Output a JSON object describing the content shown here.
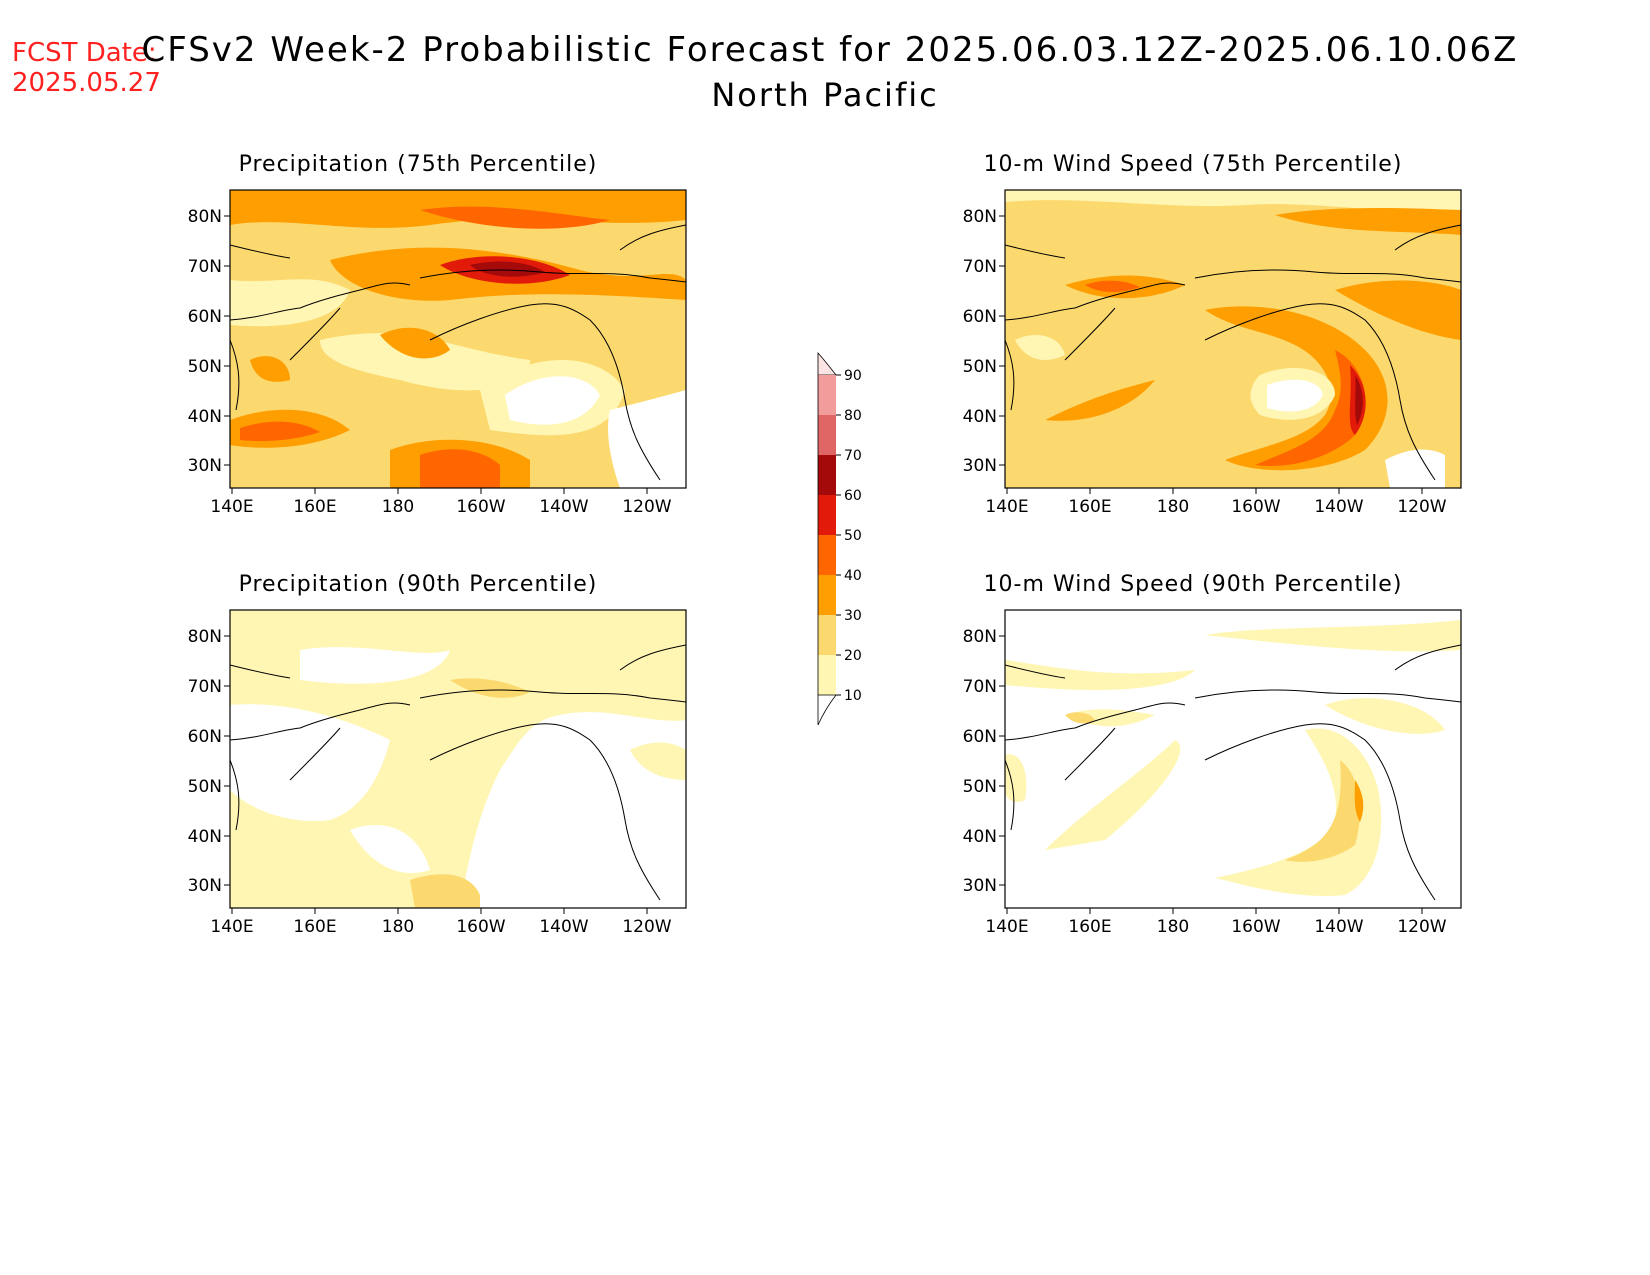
{
  "fcst": {
    "label": "FCST Date:",
    "date": "2025.05.27"
  },
  "title": {
    "line1": "CFSv2 Week-2 Probabilistic Forecast for 2025.06.03.12Z-2025.06.10.06Z",
    "line2": "North Pacific"
  },
  "axes": {
    "lat_labels": [
      "80N",
      "70N",
      "60N",
      "50N",
      "40N",
      "30N"
    ],
    "lon_labels": [
      "140E",
      "160E",
      "180",
      "160W",
      "140W",
      "120W"
    ]
  },
  "panels": [
    {
      "title": "Precipitation (75th Percentile)"
    },
    {
      "title": "10-m Wind Speed (75th Percentile)"
    },
    {
      "title": "Precipitation (90th Percentile)"
    },
    {
      "title": "10-m Wind Speed (90th Percentile)"
    }
  ],
  "colorbar": {
    "labels": [
      "90",
      "80",
      "70",
      "60",
      "50",
      "40",
      "30",
      "20",
      "10"
    ],
    "colors": [
      "#fce4e4",
      "#f29c9c",
      "#e06666",
      "#a50a0a",
      "#e11a0a",
      "#ff6600",
      "#ff9e00",
      "#fbd96e",
      "#fff6b4"
    ]
  }
}
